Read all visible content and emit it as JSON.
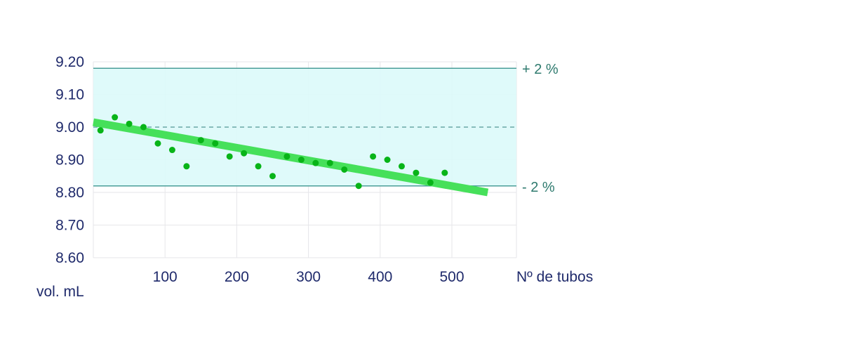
{
  "chart_data": {
    "type": "scatter",
    "title": "",
    "xlabel": "Nº de tubos",
    "ylabel": "vol. mL",
    "xlim": [
      0,
      590
    ],
    "ylim": [
      8.6,
      9.2
    ],
    "x_ticks": [
      100,
      200,
      300,
      400,
      500
    ],
    "x_tick_labels": [
      "100",
      "200",
      "300",
      "400",
      "500"
    ],
    "y_ticks": [
      8.6,
      8.7,
      8.8,
      8.9,
      9.0,
      9.1,
      9.2
    ],
    "y_tick_labels": [
      "8.60",
      "8.70",
      "8.80",
      "8.90",
      "9.00",
      "9.10",
      "9.20"
    ],
    "grid": true,
    "nominal": 9.0,
    "tolerance_band": [
      8.82,
      9.18
    ],
    "upper_limit_label": "+ 2 %",
    "lower_limit_label": "- 2 %",
    "trend_line": {
      "x": [
        0,
        550
      ],
      "y": [
        9.015,
        8.8
      ]
    },
    "points": {
      "x": [
        10,
        30,
        50,
        70,
        90,
        110,
        130,
        150,
        170,
        190,
        210,
        230,
        250,
        270,
        290,
        310,
        330,
        350,
        370,
        390,
        410,
        430,
        450,
        470,
        490
      ],
      "y": [
        8.99,
        9.03,
        9.01,
        9.0,
        8.95,
        8.93,
        8.88,
        8.96,
        8.95,
        8.91,
        8.92,
        8.88,
        8.85,
        8.91,
        8.9,
        8.89,
        8.89,
        8.87,
        8.82,
        8.91,
        8.9,
        8.88,
        8.86,
        8.83,
        8.86
      ]
    },
    "colors": {
      "band_fill": "#dcfafa",
      "limit_line": "#4a9e98",
      "nominal_line": "#6aa8a6",
      "trend": "#46e05a",
      "points": "#08b418",
      "grid": "#e6e6ea",
      "tick_text": "#1f2a6b",
      "limit_text": "#2e7a6e"
    }
  }
}
